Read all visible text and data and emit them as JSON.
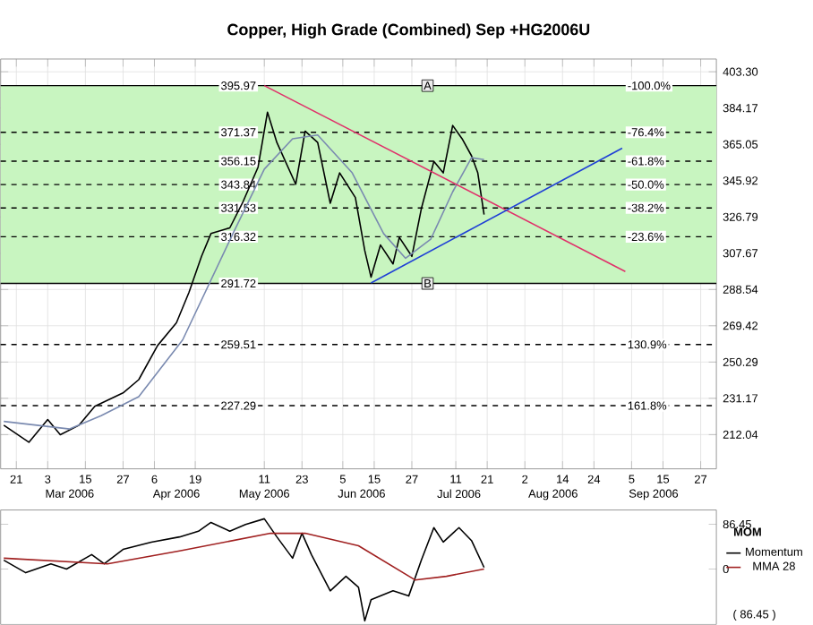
{
  "chart_data": [
    {
      "type": "line",
      "title": "Copper, High Grade (Combined) Sep +HG2006U",
      "xlim": [
        "2006-02-16",
        "2006-10-02"
      ],
      "ylim": [
        194,
        410
      ],
      "xticks": [
        {
          "value": "2006-02-21",
          "label": "21"
        },
        {
          "value": "2006-03-03",
          "label": "3"
        },
        {
          "value": "2006-03-15",
          "label": "15"
        },
        {
          "value": "2006-03-27",
          "label": "27"
        },
        {
          "value": "2006-04-06",
          "label": "6"
        },
        {
          "value": "2006-04-19",
          "label": "19"
        },
        {
          "value": "2006-05-11",
          "label": "11"
        },
        {
          "value": "2006-05-23",
          "label": "23"
        },
        {
          "value": "2006-06-05",
          "label": "5"
        },
        {
          "value": "2006-06-15",
          "label": "15"
        },
        {
          "value": "2006-06-27",
          "label": "27"
        },
        {
          "value": "2006-07-11",
          "label": "11"
        },
        {
          "value": "2006-07-21",
          "label": "21"
        },
        {
          "value": "2006-08-02",
          "label": "2"
        },
        {
          "value": "2006-08-14",
          "label": "14"
        },
        {
          "value": "2006-08-24",
          "label": "24"
        },
        {
          "value": "2006-09-05",
          "label": "5"
        },
        {
          "value": "2006-09-15",
          "label": "15"
        },
        {
          "value": "2006-09-27",
          "label": "27"
        }
      ],
      "x2lim": [
        "2006-02-16",
        "2006-10-02"
      ],
      "x2ticks": [
        {
          "value": "2006-03-10",
          "label": "Mar 2006"
        },
        {
          "value": "2006-04-13",
          "label": "Apr 2006"
        },
        {
          "value": "2006-05-11",
          "label": "May 2006"
        },
        {
          "value": "2006-06-11",
          "label": "Jun 2006"
        },
        {
          "value": "2006-07-12",
          "label": "Jul 2006"
        },
        {
          "value": "2006-08-11",
          "label": "Aug 2006"
        },
        {
          "value": "2006-09-12",
          "label": "Sep 2006"
        }
      ],
      "yticks": [
        212.04,
        231.17,
        250.29,
        269.42,
        288.54,
        307.67,
        326.79,
        345.92,
        365.05,
        384.17,
        {
          "value": 403.3,
          "label": "403.30"
        }
      ],
      "grid": true,
      "marker": "none",
      "bands": [
        {
          "axis": "y",
          "from": 291.72,
          "to": 395.97,
          "color": "#c8f5c0"
        }
      ],
      "ref_lines": [
        {
          "axis": "y",
          "value": 395.97,
          "label": "395.97",
          "line_style": "solid"
        },
        {
          "axis": "y",
          "value": 371.37,
          "label": "371.37",
          "line_style": "dashed"
        },
        {
          "axis": "y",
          "value": 356.15,
          "label": "356.15",
          "line_style": "dashed"
        },
        {
          "axis": "y",
          "value": 343.84,
          "label": "343.84",
          "line_style": "dashed"
        },
        {
          "axis": "y",
          "value": 331.53,
          "label": "331.53",
          "line_style": "dashed"
        },
        {
          "axis": "y",
          "value": 316.32,
          "label": "316.32",
          "line_style": "dashed"
        },
        {
          "axis": "y",
          "value": 291.72,
          "label": "291.72",
          "line_style": "solid"
        },
        {
          "axis": "y",
          "value": 259.51,
          "label": "259.51",
          "line_style": "dashed"
        },
        {
          "axis": "y",
          "value": 227.29,
          "label": "227.29",
          "line_style": "dashed"
        }
      ],
      "annotations": [
        {
          "text": "A",
          "x": "2006-07-02",
          "y": 395.97
        },
        {
          "text": "B",
          "x": "2006-07-02",
          "y": 291.72
        },
        {
          "text": "-100.0%",
          "x": "2006-09-03",
          "y": 395.97
        },
        {
          "text": "-76.4%",
          "x": "2006-09-03",
          "y": 371.37
        },
        {
          "text": "-61.8%",
          "x": "2006-09-03",
          "y": 356.15
        },
        {
          "text": "-50.0%",
          "x": "2006-09-03",
          "y": 343.84
        },
        {
          "text": "-38.2%",
          "x": "2006-09-03",
          "y": 331.53
        },
        {
          "text": "-23.6%",
          "x": "2006-09-03",
          "y": 316.32
        },
        {
          "text": "130.9%",
          "x": "2006-09-03",
          "y": 259.51
        },
        {
          "text": "161.8%",
          "x": "2006-09-03",
          "y": 227.29
        }
      ],
      "series": [
        {
          "color": "#000000",
          "x": [
            "2006-02-17",
            "2006-02-25",
            "2006-03-03",
            "2006-03-07",
            "2006-03-13",
            "2006-03-18",
            "2006-03-27",
            "2006-04-01",
            "2006-04-07",
            "2006-04-13",
            "2006-04-17",
            "2006-04-21",
            "2006-04-24",
            "2006-04-30",
            "2006-05-04",
            "2006-05-09",
            "2006-05-12",
            "2006-05-15",
            "2006-05-21",
            "2006-05-24",
            "2006-05-28",
            "2006-06-01",
            "2006-06-04",
            "2006-06-09",
            "2006-06-12",
            "2006-06-14",
            "2006-06-17",
            "2006-06-21",
            "2006-06-23",
            "2006-06-27",
            "2006-06-30",
            "2006-07-04",
            "2006-07-07",
            "2006-07-10",
            "2006-07-13",
            "2006-07-16",
            "2006-07-18",
            "2006-07-20"
          ],
          "values": [
            217,
            208,
            220,
            212,
            217,
            227,
            234,
            241,
            259,
            271,
            287,
            306,
            318,
            321,
            334,
            353,
            382,
            366,
            344,
            372,
            366,
            334,
            350,
            337,
            309,
            295,
            312,
            302,
            316,
            306,
            331,
            356,
            350,
            375,
            368,
            359,
            350,
            328
          ]
        },
        {
          "color": "#7a8ab0",
          "x": [
            "2006-02-17",
            "2006-03-10",
            "2006-03-20",
            "2006-04-01",
            "2006-04-15",
            "2006-05-01",
            "2006-05-11",
            "2006-05-20",
            "2006-05-28",
            "2006-06-08",
            "2006-06-18",
            "2006-06-25",
            "2006-07-03",
            "2006-07-10",
            "2006-07-16",
            "2006-07-20"
          ],
          "values": [
            219,
            215,
            222,
            232,
            262,
            318,
            352,
            368,
            370,
            350,
            318,
            305,
            315,
            340,
            358,
            357
          ]
        },
        {
          "type": "line",
          "color": "#e0306a",
          "x": [
            "2006-05-11",
            "2006-09-03"
          ],
          "values": [
            396,
            298
          ]
        },
        {
          "type": "line",
          "color": "#1f3fd6",
          "x": [
            "2006-06-14",
            "2006-09-02"
          ],
          "values": [
            292,
            363
          ]
        }
      ]
    },
    {
      "type": "line",
      "title": "MOM",
      "xlim": [
        "2006-02-16",
        "2006-10-02"
      ],
      "ylim": [
        -107,
        114
      ],
      "yticks": [
        86.45,
        0
      ],
      "tick_labels": "y",
      "legend": "right",
      "marker": "none",
      "annotations": [
        "( 86.45 )"
      ],
      "series": [
        {
          "name": "Momentum",
          "color": "#000000",
          "x": [
            "2006-02-17",
            "2006-02-24",
            "2006-03-04",
            "2006-03-09",
            "2006-03-17",
            "2006-03-21",
            "2006-03-27",
            "2006-04-05",
            "2006-04-14",
            "2006-04-20",
            "2006-04-24",
            "2006-04-30",
            "2006-05-05",
            "2006-05-11",
            "2006-05-15",
            "2006-05-20",
            "2006-05-23",
            "2006-05-26",
            "2006-06-01",
            "2006-06-06",
            "2006-06-10",
            "2006-06-12",
            "2006-06-14",
            "2006-06-21",
            "2006-06-26",
            "2006-06-30",
            "2006-07-04",
            "2006-07-07",
            "2006-07-12",
            "2006-07-16",
            "2006-07-20"
          ],
          "values": [
            17,
            -7,
            10,
            0,
            28,
            10,
            38,
            52,
            62,
            73,
            90,
            73,
            86,
            97,
            62,
            21,
            69,
            28,
            -42,
            -14,
            -35,
            -100,
            -59,
            -42,
            -52,
            17,
            80,
            52,
            80,
            55,
            3
          ]
        },
        {
          "name": "MMA 28",
          "color": "#a02020",
          "x": [
            "2006-02-17",
            "2006-03-22",
            "2006-04-14",
            "2006-05-13",
            "2006-05-24",
            "2006-06-10",
            "2006-06-28",
            "2006-07-08",
            "2006-07-20"
          ],
          "values": [
            21,
            10,
            35,
            69,
            69,
            45,
            -21,
            -14,
            0
          ]
        }
      ]
    }
  ]
}
